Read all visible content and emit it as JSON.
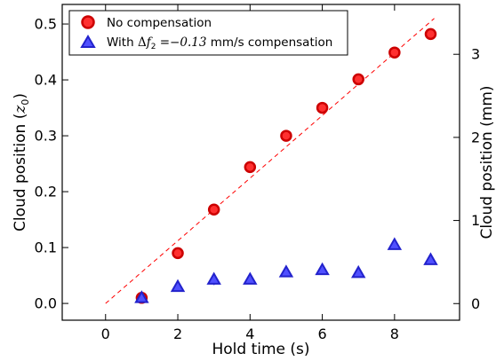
{
  "chart_data": {
    "type": "scatter",
    "xlabel": "Hold time (s)",
    "ylabel_left": {
      "prefix": "Cloud position (",
      "symbol": "z",
      "sub": "0",
      "suffix": ")"
    },
    "ylabel_right": "Cloud position (mm)",
    "xlim": [
      -1.2,
      9.8
    ],
    "ylim_left": [
      -0.03,
      0.535
    ],
    "ylim_right_mm": [
      -0.2,
      3.6
    ],
    "x_ticks": [
      "0",
      "2",
      "4",
      "6",
      "8"
    ],
    "x_tick_values": [
      0,
      2,
      4,
      6,
      8
    ],
    "y_ticks_left": [
      "0.0",
      "0.1",
      "0.2",
      "0.3",
      "0.4",
      "0.5"
    ],
    "y_tick_values_left": [
      0.0,
      0.1,
      0.2,
      0.3,
      0.4,
      0.5
    ],
    "y_ticks_right": [
      "0",
      "1",
      "2",
      "3"
    ],
    "y_tick_values_right_mm": [
      0,
      1,
      2,
      3
    ],
    "grid": false,
    "legend_position": "top-left",
    "series": [
      {
        "name": "No compensation",
        "marker": "circle",
        "color": "#ff3030",
        "edge_color": "#cc0000",
        "x": [
          1,
          2,
          3,
          4,
          5,
          6,
          7,
          8,
          9
        ],
        "y": [
          0.01,
          0.09,
          0.168,
          0.244,
          0.3,
          0.35,
          0.401,
          0.449,
          0.482
        ],
        "yerr": [
          0.004,
          0.004,
          0.01,
          0.006,
          0.005,
          0.005,
          0.005,
          0.007,
          0.005
        ]
      },
      {
        "name_parts": {
          "prefix": "With ",
          "delta": "Δ",
          "f": "f",
          "sub": "2",
          "eq": " =",
          "value": "−0.13",
          "suffix": " mm/s compensation"
        },
        "marker": "triangle",
        "color": "#5050ff",
        "edge_color": "#2222cc",
        "x": [
          1,
          2,
          3,
          4,
          5,
          6,
          7,
          8,
          9
        ],
        "y": [
          0.01,
          0.03,
          0.043,
          0.043,
          0.056,
          0.06,
          0.055,
          0.105,
          0.078
        ],
        "yerr": [
          0.004,
          0.004,
          0.01,
          0.006,
          0.005,
          0.005,
          0.005,
          0.007,
          0.005
        ]
      }
    ],
    "fit_line": {
      "style": "dashed",
      "color": "#ff0000",
      "x": [
        0,
        9.1
      ],
      "y": [
        0.0,
        0.51
      ]
    }
  }
}
